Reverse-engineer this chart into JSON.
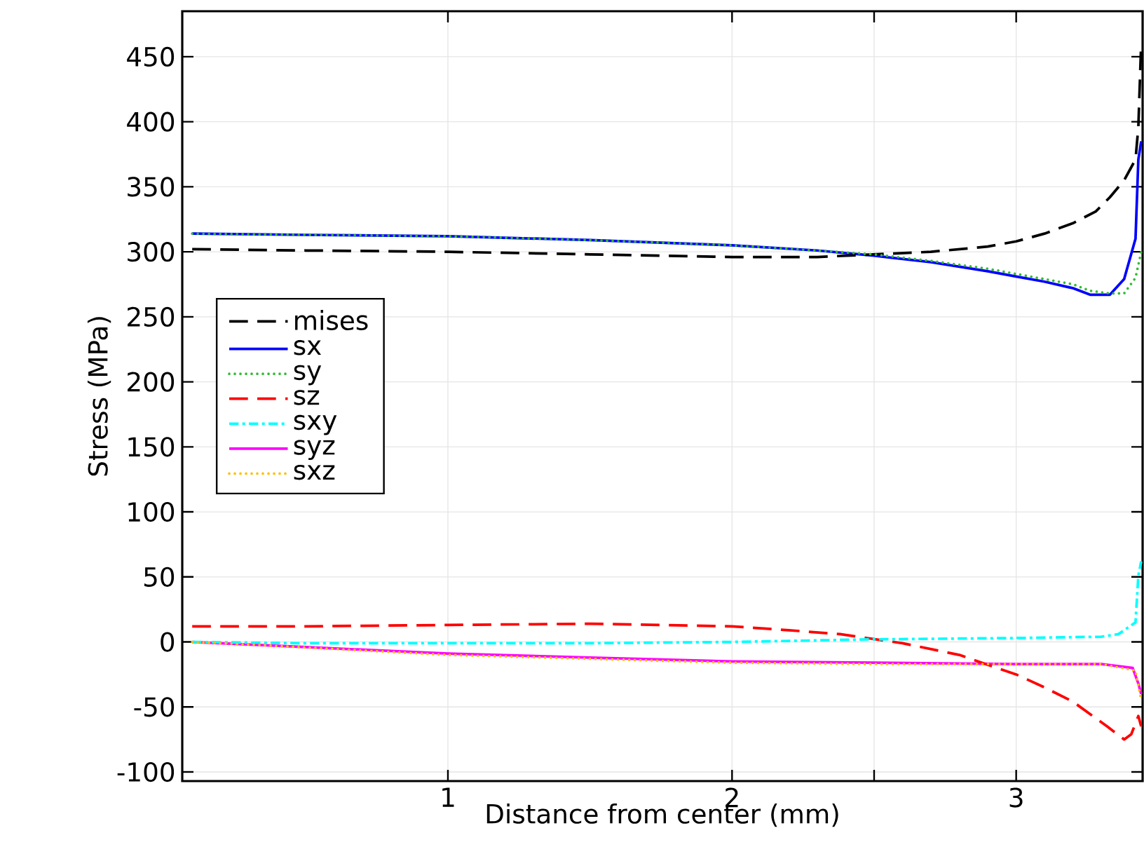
{
  "chart_data": {
    "type": "line",
    "xlabel": "Distance from center (mm)",
    "ylabel": "Stress (MPa)",
    "xlim": [
      0.065,
      3.445
    ],
    "ylim": [
      -107,
      485
    ],
    "xticks": [
      1,
      2,
      {
        "value": 2.5,
        "label": null
      },
      3
    ],
    "yticks": [
      -100,
      -50,
      0,
      50,
      100,
      150,
      200,
      250,
      300,
      350,
      400,
      450
    ],
    "grid": true,
    "legend": "left",
    "marker": "none",
    "series": [
      {
        "name": "mises",
        "color": "#000000",
        "line_style": "dashed",
        "x": [
          0.1,
          0.5,
          1,
          1.5,
          2,
          2.3,
          2.5,
          2.7,
          2.9,
          3.0,
          3.1,
          3.2,
          3.28,
          3.33,
          3.38,
          3.42,
          3.43,
          3.44
        ],
        "values": [
          302,
          301,
          300,
          298,
          296,
          296,
          298,
          300,
          304,
          308,
          314,
          322,
          331,
          342,
          355,
          371,
          396,
          461
        ]
      },
      {
        "name": "sx",
        "color": "#0000ff",
        "line_style": "solid",
        "x": [
          0.1,
          0.5,
          1,
          1.5,
          2,
          2.3,
          2.5,
          2.7,
          2.9,
          3.0,
          3.1,
          3.2,
          3.26,
          3.33,
          3.38,
          3.42,
          3.43,
          3.44
        ],
        "values": [
          314,
          313,
          312,
          309,
          305,
          301,
          297,
          292,
          285,
          281,
          277,
          272,
          267,
          267,
          279,
          310,
          371,
          385
        ]
      },
      {
        "name": "sy",
        "color": "#33bb33",
        "line_style": "dotted",
        "x": [
          0.1,
          0.5,
          1,
          1.5,
          2,
          2.3,
          2.5,
          2.7,
          2.9,
          3.0,
          3.1,
          3.2,
          3.26,
          3.33,
          3.38,
          3.42,
          3.44
        ],
        "values": [
          314,
          313,
          312,
          309,
          305,
          301,
          298,
          293,
          287,
          283,
          279,
          275,
          270,
          268,
          268,
          280,
          300
        ]
      },
      {
        "name": "sz",
        "color": "#ff0000",
        "line_style": "dashed",
        "x": [
          0.1,
          0.5,
          1,
          1.5,
          2,
          2.2,
          2.38,
          2.6,
          2.8,
          2.906,
          3.0,
          3.1,
          3.2,
          3.32,
          3.38,
          3.405,
          3.43,
          3.44
        ],
        "values": [
          12,
          12,
          13,
          14,
          12,
          9,
          6,
          -1,
          -10,
          -18,
          -25,
          -35,
          -46,
          -65,
          -75,
          -71,
          -57,
          -65
        ]
      },
      {
        "name": "sxy",
        "color": "#00ffff",
        "line_style": "dashdot",
        "x": [
          0.1,
          0.5,
          1,
          1.5,
          2,
          2.5,
          3.0,
          3.3,
          3.36,
          3.42,
          3.43,
          3.44
        ],
        "values": [
          0,
          -1,
          -1,
          -1,
          0,
          2,
          3,
          4,
          6,
          15,
          51,
          62
        ]
      },
      {
        "name": "syz",
        "color": "#ff00ff",
        "line_style": "solid",
        "x": [
          0.1,
          0.5,
          1,
          1.5,
          2,
          2.5,
          3.0,
          3.3,
          3.41,
          3.43,
          3.44
        ],
        "values": [
          0,
          -4,
          -9,
          -12,
          -15,
          -16,
          -17,
          -17,
          -20,
          -32,
          -40
        ]
      },
      {
        "name": "sxz",
        "color": "#ffbf00",
        "line_style": "dotted",
        "x": [
          0.1,
          0.3,
          1,
          1.5,
          2,
          2.5,
          3.0,
          3.3,
          3.42,
          3.44
        ],
        "values": [
          0,
          -2,
          -10,
          -13,
          -16,
          -17,
          -17,
          -17,
          -22,
          -45
        ]
      }
    ]
  }
}
